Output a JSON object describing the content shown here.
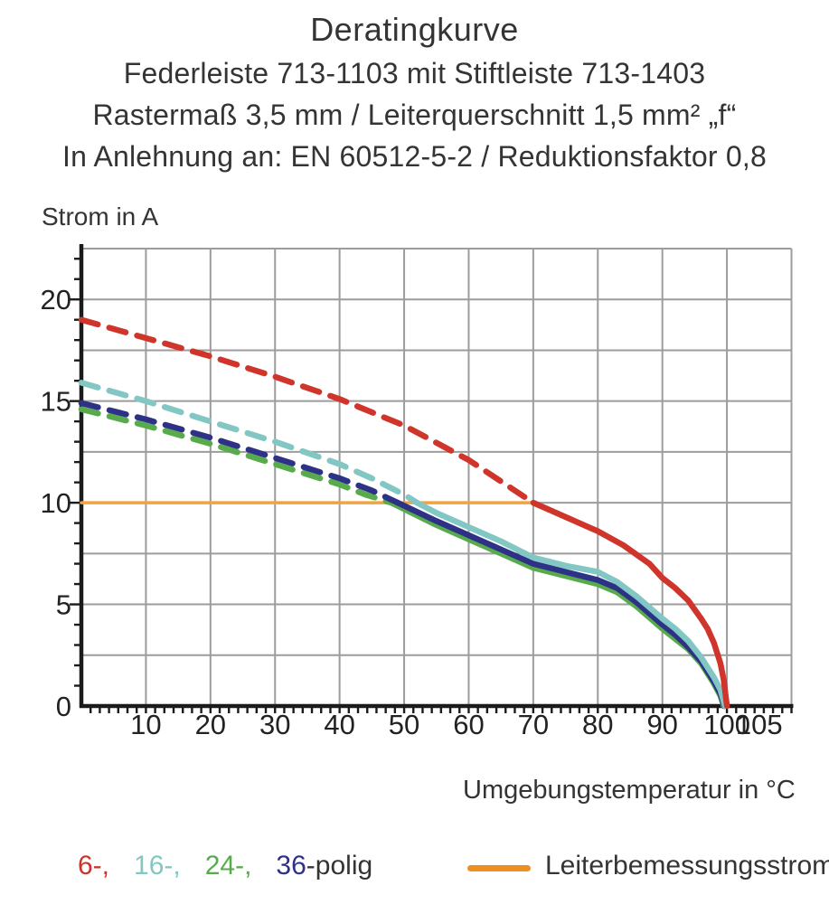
{
  "title": {
    "lines": [
      "Deratingkurve",
      "Federleiste 713-1103 mit Stiftleiste 713-1403",
      "Rastermaß 3,5 mm / Leiterquerschnitt 1,5 mm² „f“",
      "In Anlehnung an: EN 60512-5-2 / Reduktionsfaktor 0,8"
    ]
  },
  "axes": {
    "y_title": "Strom in A",
    "x_title": "Umgebungstemperatur in °C",
    "y_tick_labels": [
      0,
      5,
      10,
      15,
      20
    ],
    "x_tick_labels": [
      10,
      20,
      30,
      40,
      50,
      60,
      70,
      80,
      90,
      100,
      105
    ]
  },
  "legend": {
    "pole_items": [
      {
        "label": "6-,",
        "color": "#c9342b"
      },
      {
        "label": "16-,",
        "color": "#82c7c3"
      },
      {
        "label": "24-,",
        "color": "#57ab4b"
      },
      {
        "label": "36",
        "color": "#2d3287"
      }
    ],
    "pole_suffix": {
      "label": "-polig",
      "color": "#343434"
    },
    "line_item": {
      "label": "Leiterbemessungsstrom",
      "color": "#ee8f22"
    }
  },
  "chart_data": {
    "type": "line",
    "title": "Deratingkurve",
    "xlabel": "Umgebungstemperatur in °C",
    "ylabel": "Strom in A",
    "xlim": [
      0,
      110
    ],
    "ylim": [
      0,
      22.5
    ],
    "x_major_grid": 10,
    "y_major_grid": 2.5,
    "y_minor_tick": 1,
    "grid_color": "#9c9c9c",
    "axis_color": "#1b1b1b",
    "series": [
      {
        "name": "Leiterbemessungsstrom",
        "color": "#f2a33f",
        "width": 3.5,
        "role": "rated-current",
        "solid": [
          [
            0,
            10
          ],
          [
            70,
            10
          ]
        ]
      },
      {
        "name": "24-polig",
        "color": "#57ab4b",
        "width": 6.5,
        "dashed": [
          [
            0,
            14.6
          ],
          [
            10,
            13.8
          ],
          [
            20,
            12.9
          ],
          [
            30,
            11.9
          ],
          [
            40,
            10.9
          ],
          [
            44,
            10.4
          ],
          [
            48,
            10.0
          ]
        ],
        "solid": [
          [
            48,
            10.0
          ],
          [
            55,
            8.9
          ],
          [
            60,
            8.2
          ],
          [
            65,
            7.5
          ],
          [
            70,
            6.8
          ],
          [
            75,
            6.4
          ],
          [
            80,
            6.0
          ],
          [
            83,
            5.6
          ],
          [
            86,
            4.9
          ],
          [
            90,
            3.8
          ],
          [
            92,
            3.3
          ],
          [
            94,
            2.8
          ],
          [
            96,
            2.1
          ],
          [
            98,
            1.1
          ],
          [
            99,
            0.5
          ],
          [
            99.5,
            0
          ]
        ]
      },
      {
        "name": "36-polig",
        "color": "#2d3287",
        "width": 6.5,
        "dashed": [
          [
            0,
            14.9
          ],
          [
            10,
            14.1
          ],
          [
            20,
            13.2
          ],
          [
            30,
            12.2
          ],
          [
            40,
            11.2
          ],
          [
            45,
            10.6
          ],
          [
            49,
            10.0
          ]
        ],
        "solid": [
          [
            49,
            10.0
          ],
          [
            55,
            9.1
          ],
          [
            60,
            8.4
          ],
          [
            65,
            7.7
          ],
          [
            70,
            7.0
          ],
          [
            75,
            6.6
          ],
          [
            80,
            6.2
          ],
          [
            83,
            5.8
          ],
          [
            86,
            5.1
          ],
          [
            90,
            4.0
          ],
          [
            92,
            3.5
          ],
          [
            94,
            2.9
          ],
          [
            96,
            2.2
          ],
          [
            98,
            1.2
          ],
          [
            99,
            0.6
          ],
          [
            99.6,
            0
          ]
        ]
      },
      {
        "name": "16-polig",
        "color": "#82c7c3",
        "width": 6.5,
        "dashed": [
          [
            0,
            15.9
          ],
          [
            10,
            15.0
          ],
          [
            20,
            14.0
          ],
          [
            30,
            13.0
          ],
          [
            40,
            11.9
          ],
          [
            45,
            11.2
          ],
          [
            50,
            10.4
          ],
          [
            52,
            10.0
          ]
        ],
        "solid": [
          [
            52,
            10.0
          ],
          [
            55,
            9.5
          ],
          [
            60,
            8.8
          ],
          [
            65,
            8.1
          ],
          [
            70,
            7.3
          ],
          [
            75,
            6.9
          ],
          [
            80,
            6.6
          ],
          [
            83,
            6.1
          ],
          [
            86,
            5.4
          ],
          [
            90,
            4.3
          ],
          [
            92,
            3.8
          ],
          [
            94,
            3.2
          ],
          [
            96,
            2.4
          ],
          [
            98,
            1.4
          ],
          [
            99,
            0.8
          ],
          [
            99.7,
            0
          ]
        ]
      },
      {
        "name": "6-polig",
        "color": "#d0352c",
        "width": 6.5,
        "dashed": [
          [
            0,
            19.0
          ],
          [
            10,
            18.1
          ],
          [
            20,
            17.2
          ],
          [
            30,
            16.2
          ],
          [
            40,
            15.1
          ],
          [
            50,
            13.8
          ],
          [
            60,
            12.1
          ],
          [
            70,
            10.0
          ]
        ],
        "solid": [
          [
            70,
            10.0
          ],
          [
            75,
            9.3
          ],
          [
            80,
            8.6
          ],
          [
            84,
            7.9
          ],
          [
            88,
            7.0
          ],
          [
            90,
            6.3
          ],
          [
            92,
            5.8
          ],
          [
            94,
            5.2
          ],
          [
            96,
            4.3
          ],
          [
            97,
            3.8
          ],
          [
            98,
            3.1
          ],
          [
            99,
            2.1
          ],
          [
            99.5,
            1.3
          ],
          [
            100,
            0
          ]
        ]
      }
    ]
  }
}
